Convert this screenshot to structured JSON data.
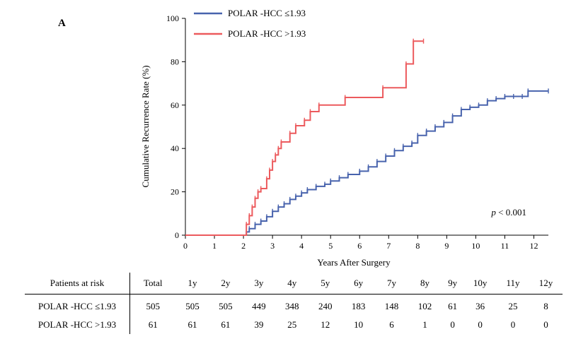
{
  "panel_label": "A",
  "p_value": {
    "symbol": "p",
    "rest": " < 0.001"
  },
  "colors": {
    "low": "#4863ad",
    "high": "#ec5a5d"
  },
  "chart_data": {
    "type": "line",
    "step": true,
    "xlabel": "Years After Surgery",
    "ylabel": "Cumulative Recurrence Rate (%)",
    "xlim": [
      0,
      12.5
    ],
    "ylim": [
      0,
      100
    ],
    "xticks": [
      "0",
      "1",
      "2",
      "3",
      "4",
      "5",
      "6",
      "7",
      "8",
      "9",
      "10",
      "11",
      "12"
    ],
    "yticks": [
      "0",
      "20",
      "40",
      "60",
      "80",
      "100"
    ],
    "legend_position": "top-left",
    "grid": false,
    "series": [
      {
        "name": "POLAR -HCC ≤1.93",
        "color": "#4863ad",
        "x": [
          0,
          2.0,
          2.1,
          2.2,
          2.4,
          2.6,
          2.8,
          3.0,
          3.2,
          3.4,
          3.6,
          3.8,
          4.0,
          4.2,
          4.5,
          4.8,
          5.0,
          5.3,
          5.6,
          6.0,
          6.3,
          6.6,
          6.9,
          7.2,
          7.5,
          7.8,
          8.0,
          8.3,
          8.6,
          8.9,
          9.2,
          9.5,
          9.8,
          10.1,
          10.4,
          10.7,
          11.0,
          11.3,
          11.6,
          11.8,
          12.5
        ],
        "y": [
          0,
          0,
          1.5,
          3,
          5,
          6.5,
          8.5,
          11,
          13,
          14.5,
          16.5,
          18,
          19.5,
          21,
          22.5,
          23.5,
          25,
          26.5,
          28,
          29.5,
          31.5,
          34,
          36.5,
          39,
          41,
          42.5,
          46,
          48,
          50,
          52,
          55,
          58,
          59,
          60,
          62,
          63,
          64,
          64,
          64,
          66.5,
          66.5
        ]
      },
      {
        "name": "POLAR -HCC >1.93",
        "color": "#ec5a5d",
        "x": [
          0,
          2.0,
          2.1,
          2.2,
          2.3,
          2.4,
          2.5,
          2.6,
          2.8,
          2.9,
          3.0,
          3.1,
          3.2,
          3.3,
          3.6,
          3.8,
          4.1,
          4.3,
          4.6,
          5.5,
          6.8,
          7.6,
          7.85,
          8.2
        ],
        "y": [
          0,
          0,
          5,
          9,
          13,
          17,
          20,
          21.5,
          26,
          30,
          34,
          37,
          40,
          43,
          47,
          50.5,
          53,
          57,
          60,
          63.5,
          68,
          79,
          89.5,
          89.5
        ]
      }
    ]
  },
  "risk_table": {
    "header": [
      "Patients at risk",
      "Total",
      "1y",
      "2y",
      "3y",
      "4y",
      "5y",
      "6y",
      "7y",
      "8y",
      "9y",
      "10y",
      "11y",
      "12y"
    ],
    "rows": [
      [
        "POLAR -HCC ≤1.93",
        "505",
        "505",
        "505",
        "449",
        "348",
        "240",
        "183",
        "148",
        "102",
        "61",
        "36",
        "25",
        "8"
      ],
      [
        "POLAR -HCC >1.93",
        "61",
        "61",
        "61",
        "39",
        "25",
        "12",
        "10",
        "6",
        "1",
        "0",
        "0",
        "0",
        "0"
      ]
    ]
  }
}
